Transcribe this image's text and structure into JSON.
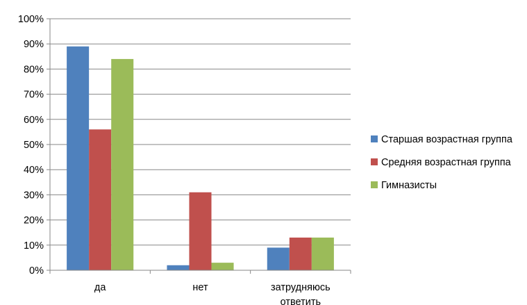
{
  "chart_data": {
    "type": "bar",
    "categories": [
      [
        "да"
      ],
      [
        "нет"
      ],
      [
        "затрудняюсь",
        "ответить"
      ]
    ],
    "series": [
      {
        "name": "Старшая возрастная группа",
        "color": "#4F81BD",
        "values": [
          89,
          2,
          9
        ]
      },
      {
        "name": "Средняя возрастная группа",
        "color": "#C0504D",
        "values": [
          56,
          31,
          13
        ]
      },
      {
        "name": "Гимназисты",
        "color": "#9BBB59",
        "values": [
          84,
          3,
          13
        ]
      }
    ],
    "y_ticks": [
      "0%",
      "10%",
      "20%",
      "30%",
      "40%",
      "50%",
      "60%",
      "70%",
      "80%",
      "90%",
      "100%"
    ],
    "ylim": [
      0,
      100
    ],
    "grid": true,
    "legend_position": "right",
    "title": "",
    "xlabel": "",
    "ylabel": ""
  }
}
